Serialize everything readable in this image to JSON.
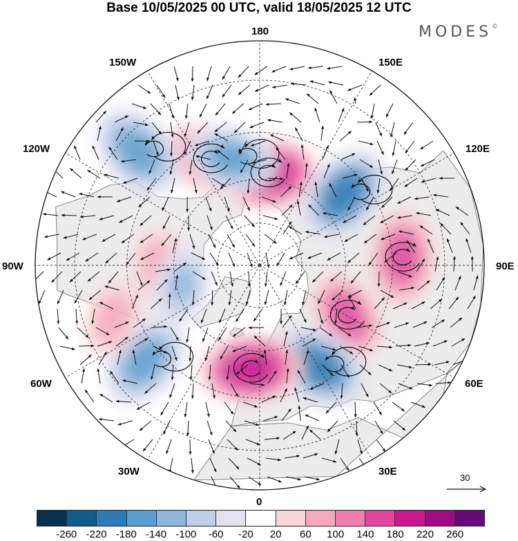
{
  "header": {
    "title": "Base 10/05/2025 00 UTC, valid 18/05/2025 12 UTC"
  },
  "brand": {
    "name": "MODES",
    "mark": "©"
  },
  "map": {
    "projection": "north-polar-stereographic",
    "longitude_labels": [
      "180",
      "150E",
      "120E",
      "90E",
      "60E",
      "30E",
      "0",
      "30W",
      "60W",
      "90W",
      "120W",
      "150W"
    ],
    "reference_vector": {
      "value": "30",
      "icon": "arrow-right-icon"
    },
    "land_color": "#ececec",
    "anomaly_centers": [
      {
        "lon": 175,
        "lat": 58,
        "value": 200
      },
      {
        "lon": -155,
        "lat": 50,
        "value": 170
      },
      {
        "lon": -165,
        "lat": 52,
        "value": -150
      },
      {
        "lon": -133,
        "lat": 35,
        "value": -180
      },
      {
        "lon": 130,
        "lat": 52,
        "value": -200
      },
      {
        "lon": 93,
        "lat": 42,
        "value": 170
      },
      {
        "lon": 60,
        "lat": 55,
        "value": 150
      },
      {
        "lon": 30,
        "lat": 50,
        "value": -200
      },
      {
        "lon": -5,
        "lat": 54,
        "value": 200
      },
      {
        "lon": -50,
        "lat": 40,
        "value": -170
      },
      {
        "lon": -90,
        "lat": 55,
        "value": 80
      },
      {
        "lon": -75,
        "lat": 62,
        "value": -110
      },
      {
        "lon": -70,
        "lat": 38,
        "value": 90
      }
    ]
  },
  "colorbar": {
    "ticks": [
      "-260",
      "-220",
      "-180",
      "-140",
      "-100",
      "-60",
      "-20",
      "20",
      "60",
      "100",
      "140",
      "180",
      "220",
      "260"
    ],
    "colors": [
      "#0a2f4f",
      "#125b8a",
      "#2c7bb6",
      "#5b9dcb",
      "#8fb7dc",
      "#bfcfe8",
      "#e4e2f1",
      "#ffffff",
      "#fad6d6",
      "#f5aab9",
      "#ee7db0",
      "#e0489f",
      "#c8188e",
      "#9e0b82",
      "#650a78"
    ]
  }
}
